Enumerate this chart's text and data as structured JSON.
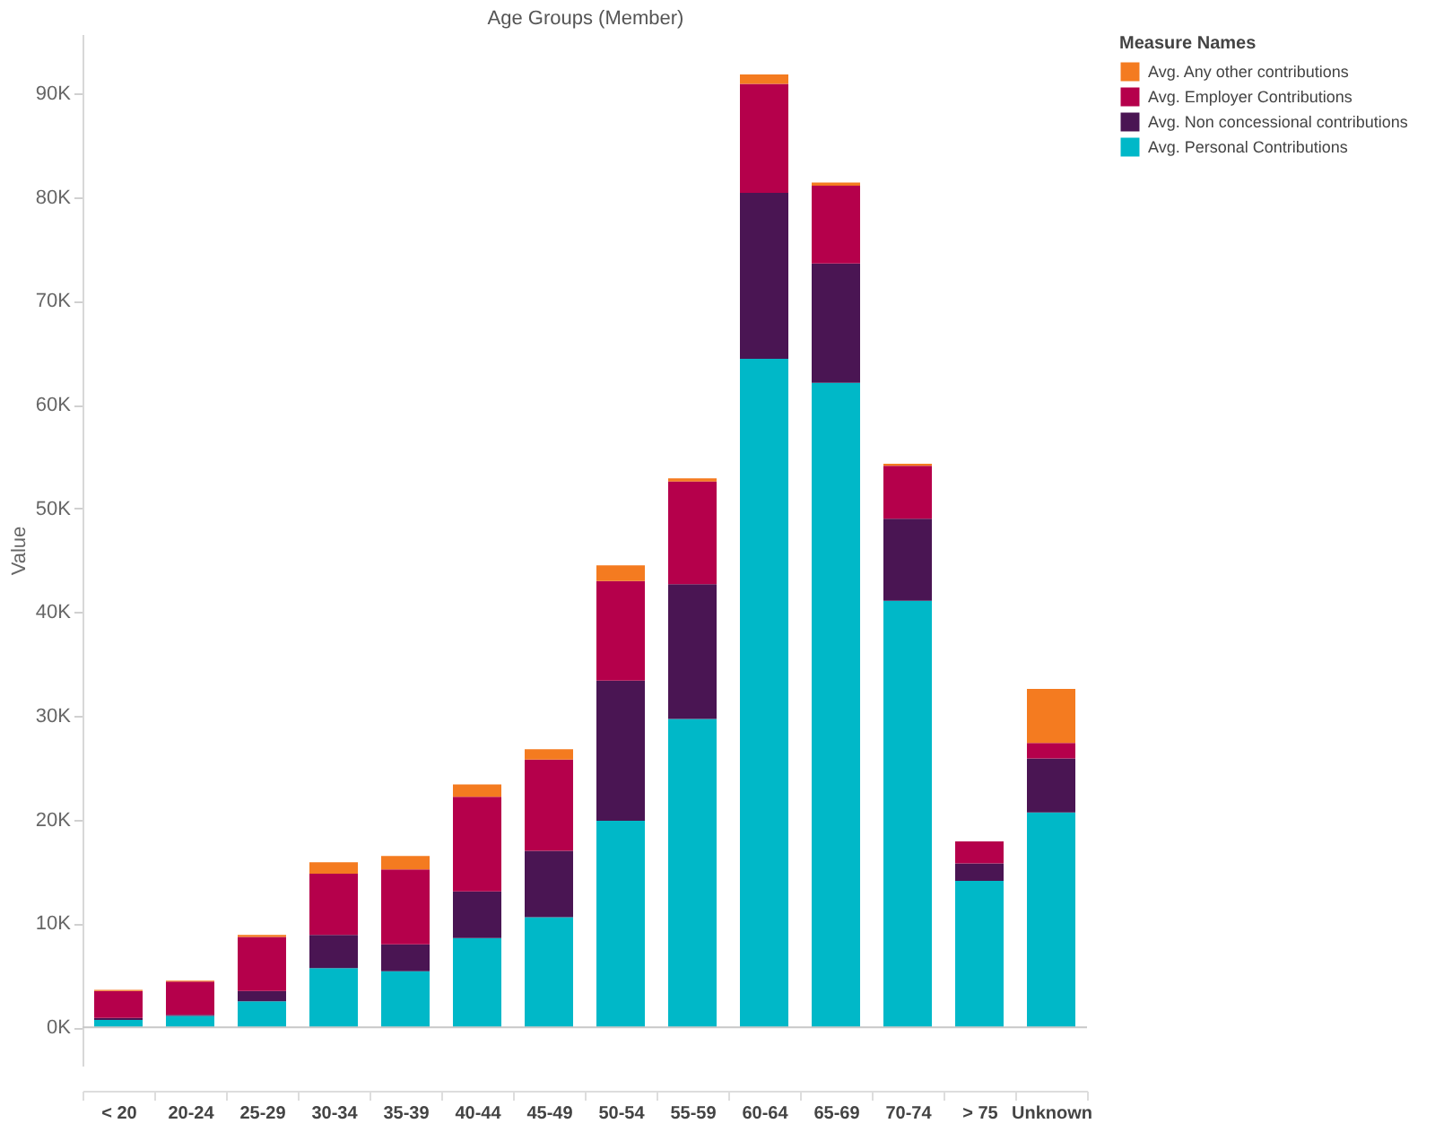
{
  "chart_data": {
    "type": "bar",
    "stacked": true,
    "xlabel": "Age Groups (Member)",
    "ylabel": "Value",
    "legend_title": "Measure Names",
    "legend": "top right",
    "grid": false,
    "categories": [
      "< 20",
      "20-24",
      "25-29",
      "30-34",
      "35-39",
      "40-44",
      "45-49",
      "50-54",
      "55-59",
      "60-64",
      "65-69",
      "70-74",
      "> 75",
      "Unknown"
    ],
    "ylim": [
      -3700,
      95700
    ],
    "yticks": [
      {
        "value": 0,
        "label": "0K"
      },
      {
        "value": 10000,
        "label": "10K"
      },
      {
        "value": 20000,
        "label": "20K"
      },
      {
        "value": 30000,
        "label": "30K"
      },
      {
        "value": 40000,
        "label": "40K"
      },
      {
        "value": 50000,
        "label": "50K"
      },
      {
        "value": 60000,
        "label": "60K"
      },
      {
        "value": 70000,
        "label": "70K"
      },
      {
        "value": 80000,
        "label": "80K"
      },
      {
        "value": 90000,
        "label": "90K"
      }
    ],
    "ref_lines": [
      {
        "axis": "y",
        "value": 0,
        "label": null,
        "color": "#c8c8c8"
      }
    ],
    "series": [
      {
        "name": "Avg. Personal Contributions",
        "color": "#00b8c8",
        "values": [
          700,
          1100,
          2500,
          5700,
          5400,
          8600,
          10600,
          19900,
          29700,
          64400,
          62100,
          41100,
          14100,
          20700
        ]
      },
      {
        "name": "Avg. Non concessional contributions",
        "color": "#4a1553",
        "values": [
          200,
          100,
          1000,
          3200,
          2600,
          4500,
          6400,
          13500,
          13000,
          16000,
          11500,
          7900,
          1700,
          5200
        ]
      },
      {
        "name": "Avg. Employer Contributions",
        "color": "#b5004b",
        "values": [
          2600,
          3200,
          5200,
          5900,
          7200,
          9100,
          8800,
          9600,
          9900,
          10500,
          7500,
          5100,
          2100,
          1500
        ]
      },
      {
        "name": "Avg. Any other contributions",
        "color": "#f47b20",
        "values": [
          100,
          100,
          200,
          1100,
          1300,
          1200,
          1000,
          1500,
          300,
          900,
          300,
          200,
          0,
          5200
        ]
      }
    ]
  }
}
